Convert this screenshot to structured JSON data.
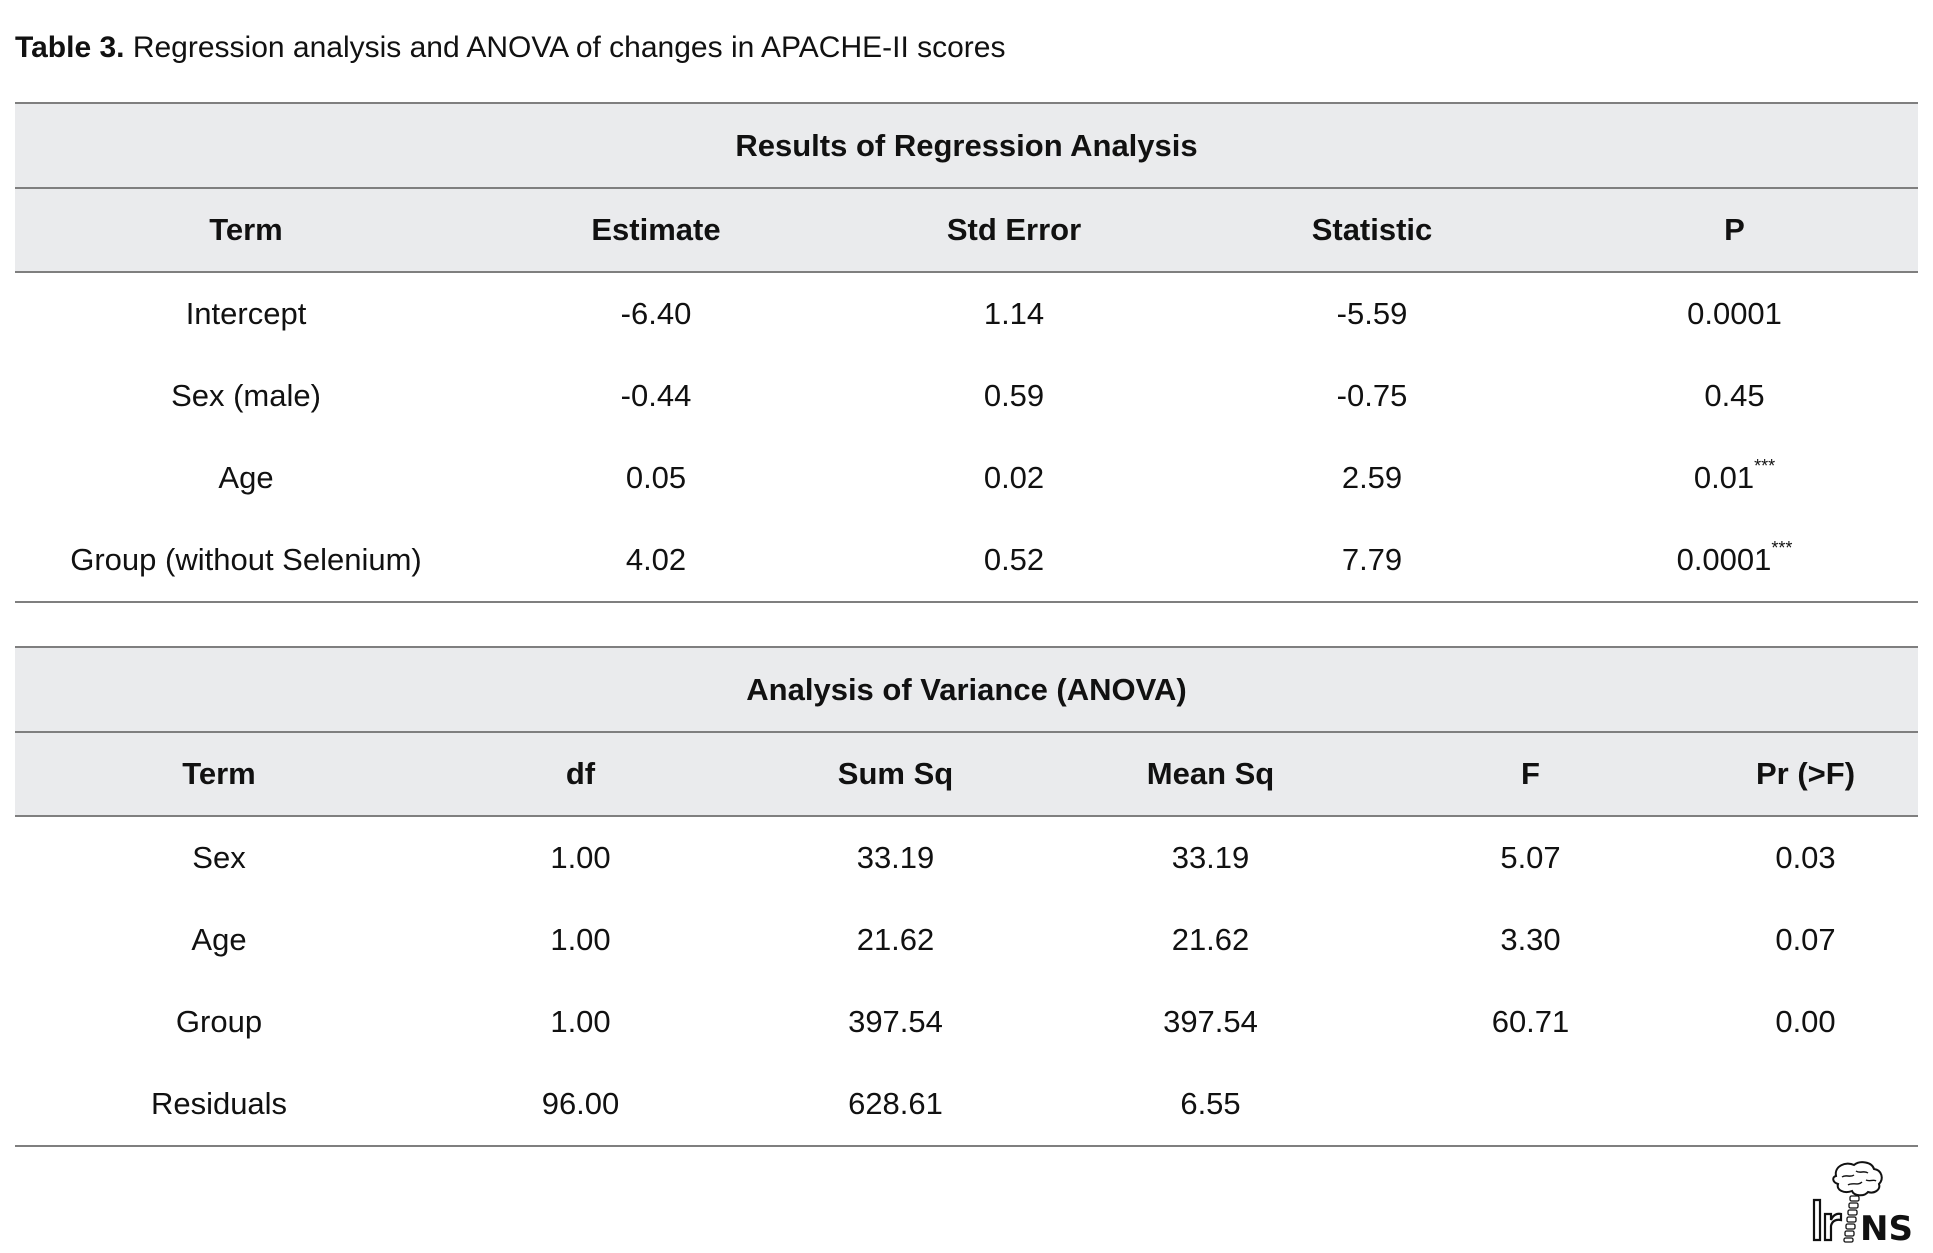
{
  "caption": {
    "label": "Table 3.",
    "text": " Regression analysis and ANOVA of changes in APACHE-II scores"
  },
  "regression": {
    "title": "Results of Regression Analysis",
    "headers": [
      "Term",
      "Estimate",
      "Std Error",
      "Statistic",
      "P"
    ],
    "rows": [
      {
        "term": "Intercept",
        "estimate": "-6.40",
        "std_error": "1.14",
        "statistic": "-5.59",
        "p": "0.0001",
        "p_mark": ""
      },
      {
        "term": "Sex (male)",
        "estimate": "-0.44",
        "std_error": "0.59",
        "statistic": "-0.75",
        "p": "0.45",
        "p_mark": ""
      },
      {
        "term": "Age",
        "estimate": "0.05",
        "std_error": "0.02",
        "statistic": "2.59",
        "p": "0.01",
        "p_mark": "***"
      },
      {
        "term": "Group (without Selenium)",
        "estimate": "4.02",
        "std_error": "0.52",
        "statistic": "7.79",
        "p": "0.0001",
        "p_mark": "***"
      }
    ]
  },
  "anova": {
    "title": "Analysis of Variance (ANOVA)",
    "headers": [
      "Term",
      "df",
      "Sum Sq",
      "Mean Sq",
      "F",
      "Pr (>F)"
    ],
    "rows": [
      {
        "term": "Sex",
        "df": "1.00",
        "sum_sq": "33.19",
        "mean_sq": "33.19",
        "f": "5.07",
        "pr": "0.03"
      },
      {
        "term": "Age",
        "df": "1.00",
        "sum_sq": "21.62",
        "mean_sq": "21.62",
        "f": "3.30",
        "pr": "0.07"
      },
      {
        "term": "Group",
        "df": "1.00",
        "sum_sq": "397.54",
        "mean_sq": "397.54",
        "f": "60.71",
        "pr": "0.00"
      },
      {
        "term": "Residuals",
        "df": "96.00",
        "sum_sq": "628.61",
        "mean_sq": "6.55",
        "f": "",
        "pr": ""
      }
    ]
  },
  "logo": {
    "text": "IrJNS",
    "icon": "brain-spine-logo-icon"
  }
}
